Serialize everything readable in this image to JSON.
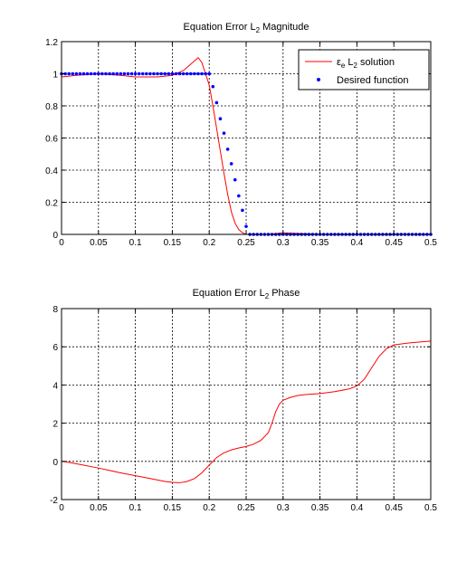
{
  "chart_data": [
    {
      "type": "line",
      "title": "Equation Error L",
      "title_subscript": "2",
      "title_suffix": " Magnitude",
      "xlim": [
        0,
        0.5
      ],
      "ylim": [
        0,
        1.2
      ],
      "x_ticks": [
        "0",
        "0.05",
        "0.1",
        "0.15",
        "0.2",
        "0.25",
        "0.3",
        "0.35",
        "0.4",
        "0.45",
        "0.5"
      ],
      "y_ticks": [
        "0",
        "0.2",
        "0.4",
        "0.6",
        "0.8",
        "1",
        "1.2"
      ],
      "grid": true,
      "legend_position": "top-right",
      "series": [
        {
          "name": "ε",
          "name_sub1": "e",
          "name_mid": " L",
          "name_sub2": "2",
          "name_suffix": " solution",
          "style": "line",
          "color": "#ff0000",
          "x": [
            0,
            0.02,
            0.05,
            0.08,
            0.1,
            0.13,
            0.15,
            0.165,
            0.175,
            0.185,
            0.19,
            0.195,
            0.2,
            0.205,
            0.21,
            0.215,
            0.22,
            0.225,
            0.23,
            0.235,
            0.24,
            0.245,
            0.25,
            0.26,
            0.28,
            0.3,
            0.35,
            0.4,
            0.45,
            0.5
          ],
          "y": [
            0.98,
            0.99,
            1.0,
            0.99,
            0.98,
            0.98,
            0.99,
            1.02,
            1.06,
            1.1,
            1.07,
            1.0,
            0.93,
            0.8,
            0.66,
            0.52,
            0.38,
            0.25,
            0.14,
            0.07,
            0.03,
            0.01,
            0.0,
            0.0,
            0.0,
            0.01,
            0.0,
            0.0,
            0.0,
            0.0
          ]
        },
        {
          "name": "Desired function",
          "style": "dots",
          "color": "#0000ff",
          "x": [
            0,
            0.005,
            0.01,
            0.015,
            0.02,
            0.025,
            0.03,
            0.035,
            0.04,
            0.045,
            0.05,
            0.055,
            0.06,
            0.065,
            0.07,
            0.075,
            0.08,
            0.085,
            0.09,
            0.095,
            0.1,
            0.105,
            0.11,
            0.115,
            0.12,
            0.125,
            0.13,
            0.135,
            0.14,
            0.145,
            0.15,
            0.155,
            0.16,
            0.165,
            0.17,
            0.175,
            0.18,
            0.185,
            0.19,
            0.195,
            0.2,
            0.205,
            0.21,
            0.215,
            0.22,
            0.225,
            0.23,
            0.235,
            0.24,
            0.245,
            0.25,
            0.255,
            0.26,
            0.265,
            0.27,
            0.275,
            0.28,
            0.285,
            0.29,
            0.295,
            0.3,
            0.305,
            0.31,
            0.315,
            0.32,
            0.325,
            0.33,
            0.335,
            0.34,
            0.345,
            0.35,
            0.355,
            0.36,
            0.365,
            0.37,
            0.375,
            0.38,
            0.385,
            0.39,
            0.395,
            0.4,
            0.405,
            0.41,
            0.415,
            0.42,
            0.425,
            0.43,
            0.435,
            0.44,
            0.445,
            0.45,
            0.455,
            0.46,
            0.465,
            0.47,
            0.475,
            0.48,
            0.485,
            0.49,
            0.495,
            0.5
          ],
          "y": [
            1,
            1,
            1,
            1,
            1,
            1,
            1,
            1,
            1,
            1,
            1,
            1,
            1,
            1,
            1,
            1,
            1,
            1,
            1,
            1,
            1,
            1,
            1,
            1,
            1,
            1,
            1,
            1,
            1,
            1,
            1,
            1,
            1,
            1,
            1,
            1,
            1,
            1,
            1,
            1,
            1,
            0.92,
            0.82,
            0.72,
            0.63,
            0.53,
            0.44,
            0.34,
            0.24,
            0.15,
            0.05,
            0,
            0,
            0,
            0,
            0,
            0,
            0,
            0,
            0,
            0,
            0,
            0,
            0,
            0,
            0,
            0,
            0,
            0,
            0,
            0,
            0,
            0,
            0,
            0,
            0,
            0,
            0,
            0,
            0,
            0,
            0,
            0,
            0,
            0,
            0,
            0,
            0,
            0,
            0,
            0,
            0,
            0,
            0,
            0,
            0,
            0,
            0,
            0,
            0,
            0
          ]
        }
      ]
    },
    {
      "type": "line",
      "title": "Equation Error L",
      "title_subscript": "2",
      "title_suffix": " Phase",
      "xlim": [
        0,
        0.5
      ],
      "ylim": [
        -2,
        8
      ],
      "x_ticks": [
        "0",
        "0.05",
        "0.1",
        "0.15",
        "0.2",
        "0.25",
        "0.3",
        "0.35",
        "0.4",
        "0.45",
        "0.5"
      ],
      "y_ticks": [
        "-2",
        "0",
        "2",
        "4",
        "6",
        "8"
      ],
      "grid": true,
      "series": [
        {
          "style": "line",
          "color": "#ff0000",
          "x": [
            0,
            0.01,
            0.03,
            0.05,
            0.08,
            0.1,
            0.12,
            0.14,
            0.15,
            0.16,
            0.17,
            0.18,
            0.19,
            0.2,
            0.21,
            0.22,
            0.23,
            0.24,
            0.25,
            0.26,
            0.27,
            0.28,
            0.285,
            0.29,
            0.295,
            0.3,
            0.31,
            0.32,
            0.33,
            0.35,
            0.37,
            0.39,
            0.4,
            0.41,
            0.42,
            0.43,
            0.44,
            0.45,
            0.47,
            0.5
          ],
          "y": [
            0,
            -0.05,
            -0.2,
            -0.35,
            -0.6,
            -0.75,
            -0.9,
            -1.05,
            -1.1,
            -1.12,
            -1.05,
            -0.9,
            -0.6,
            -0.2,
            0.2,
            0.45,
            0.6,
            0.7,
            0.78,
            0.9,
            1.1,
            1.5,
            2.0,
            2.6,
            3.0,
            3.2,
            3.35,
            3.45,
            3.5,
            3.55,
            3.65,
            3.8,
            3.95,
            4.3,
            4.9,
            5.5,
            5.9,
            6.1,
            6.2,
            6.3
          ]
        }
      ]
    }
  ]
}
